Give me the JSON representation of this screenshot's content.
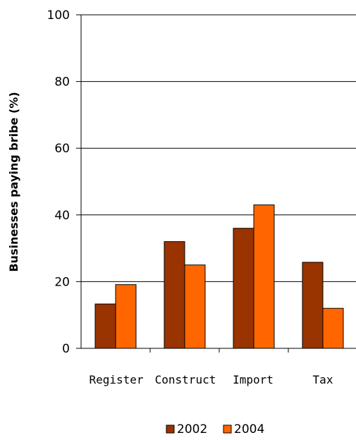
{
  "chart_data": {
    "type": "bar",
    "categories": [
      "Register",
      "Construct",
      "Import",
      "Tax"
    ],
    "series": [
      {
        "name": "2002",
        "values": [
          13.3,
          32,
          36,
          25.8
        ],
        "color": "#993300"
      },
      {
        "name": "2004",
        "values": [
          19.1,
          25,
          43,
          12
        ],
        "color": "#ff6600"
      }
    ],
    "ylabel": "Businesses paying bribe (%)",
    "xlabel": "",
    "ylim": [
      0,
      100
    ],
    "yticks": [
      0,
      20,
      40,
      60,
      80,
      100
    ],
    "grid": true,
    "legend_position": "bottom"
  }
}
